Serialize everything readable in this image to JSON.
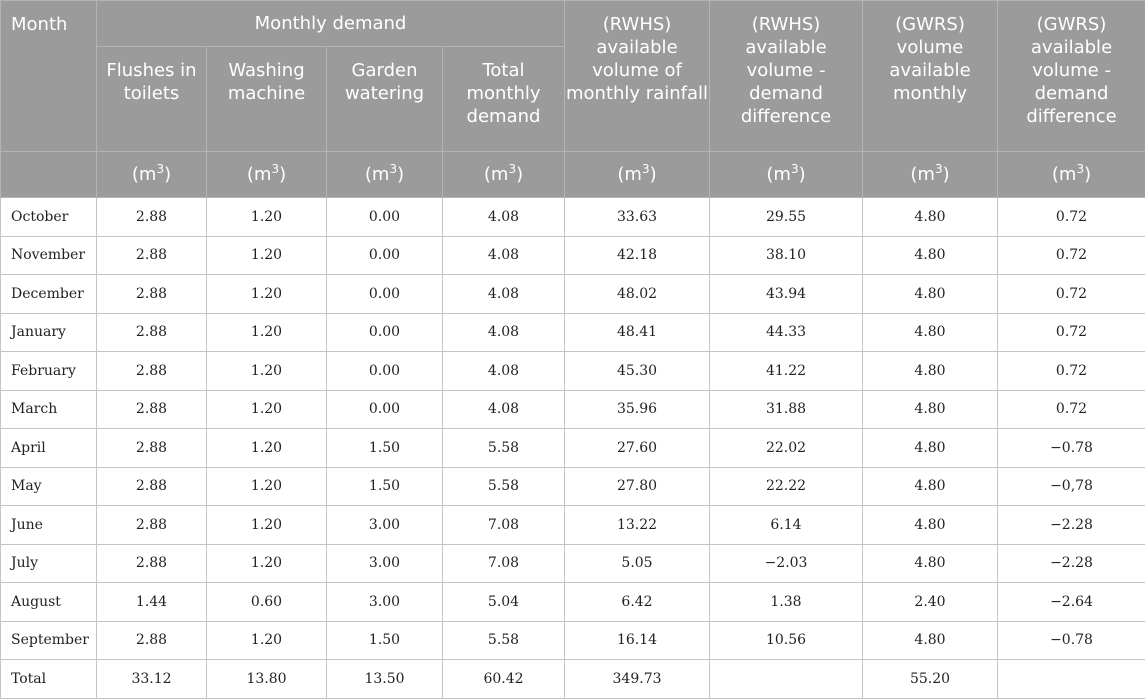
{
  "header": {
    "month": "Month",
    "monthly_demand": "Monthly demand",
    "flushes": "Flushes in toilets",
    "washing": "Washing machine",
    "garden": "Garden watering",
    "total_demand": "Total monthly demand",
    "rwhs_available": "(RWHS) available volume of monthly rainfall",
    "rwhs_difference": "(RWHS) available volume - demand difference",
    "gwrs_available": "(GWRS) volume available monthly",
    "gwrs_difference": "(GWRS) available volume - demand difference",
    "unit_prefix": "(m",
    "unit_exp": "3",
    "unit_suffix": ")"
  },
  "rows": [
    {
      "month": "October",
      "flushes": "2.88",
      "washing": "1.20",
      "garden": "0.00",
      "total": "4.08",
      "rwhs": "33.63",
      "rwhs_diff": "29.55",
      "gwrs": "4.80",
      "gwrs_diff": "0.72"
    },
    {
      "month": "November",
      "flushes": "2.88",
      "washing": "1.20",
      "garden": "0.00",
      "total": "4.08",
      "rwhs": "42.18",
      "rwhs_diff": "38.10",
      "gwrs": "4.80",
      "gwrs_diff": "0.72"
    },
    {
      "month": "December",
      "flushes": "2.88",
      "washing": "1.20",
      "garden": "0.00",
      "total": "4.08",
      "rwhs": "48.02",
      "rwhs_diff": "43.94",
      "gwrs": "4.80",
      "gwrs_diff": "0.72"
    },
    {
      "month": "January",
      "flushes": "2.88",
      "washing": "1.20",
      "garden": "0.00",
      "total": "4.08",
      "rwhs": "48.41",
      "rwhs_diff": "44.33",
      "gwrs": "4.80",
      "gwrs_diff": "0.72"
    },
    {
      "month": "February",
      "flushes": "2.88",
      "washing": "1.20",
      "garden": "0.00",
      "total": "4.08",
      "rwhs": "45.30",
      "rwhs_diff": "41.22",
      "gwrs": "4.80",
      "gwrs_diff": "0.72"
    },
    {
      "month": "March",
      "flushes": "2.88",
      "washing": "1.20",
      "garden": "0.00",
      "total": "4.08",
      "rwhs": "35.96",
      "rwhs_diff": "31.88",
      "gwrs": "4.80",
      "gwrs_diff": "0.72"
    },
    {
      "month": "April",
      "flushes": "2.88",
      "washing": "1.20",
      "garden": "1.50",
      "total": "5.58",
      "rwhs": "27.60",
      "rwhs_diff": "22.02",
      "gwrs": "4.80",
      "gwrs_diff": "−0.78"
    },
    {
      "month": "May",
      "flushes": "2.88",
      "washing": "1.20",
      "garden": "1.50",
      "total": "5.58",
      "rwhs": "27.80",
      "rwhs_diff": "22.22",
      "gwrs": "4.80",
      "gwrs_diff": "−0,78"
    },
    {
      "month": "June",
      "flushes": "2.88",
      "washing": "1.20",
      "garden": "3.00",
      "total": "7.08",
      "rwhs": "13.22",
      "rwhs_diff": "6.14",
      "gwrs": "4.80",
      "gwrs_diff": "−2.28"
    },
    {
      "month": "July",
      "flushes": "2.88",
      "washing": "1.20",
      "garden": "3.00",
      "total": "7.08",
      "rwhs": "5.05",
      "rwhs_diff": "−2.03",
      "gwrs": "4.80",
      "gwrs_diff": "−2.28"
    },
    {
      "month": "August",
      "flushes": "1.44",
      "washing": "0.60",
      "garden": "3.00",
      "total": "5.04",
      "rwhs": "6.42",
      "rwhs_diff": "1.38",
      "gwrs": "2.40",
      "gwrs_diff": "−2.64"
    },
    {
      "month": "September",
      "flushes": "2.88",
      "washing": "1.20",
      "garden": "1.50",
      "total": "5.58",
      "rwhs": "16.14",
      "rwhs_diff": "10.56",
      "gwrs": "4.80",
      "gwrs_diff": "−0.78"
    },
    {
      "month": "Total",
      "flushes": "33.12",
      "washing": "13.80",
      "garden": "13.50",
      "total": "60.42",
      "rwhs": "349.73",
      "rwhs_diff": "",
      "gwrs": "55.20",
      "gwrs_diff": ""
    }
  ]
}
